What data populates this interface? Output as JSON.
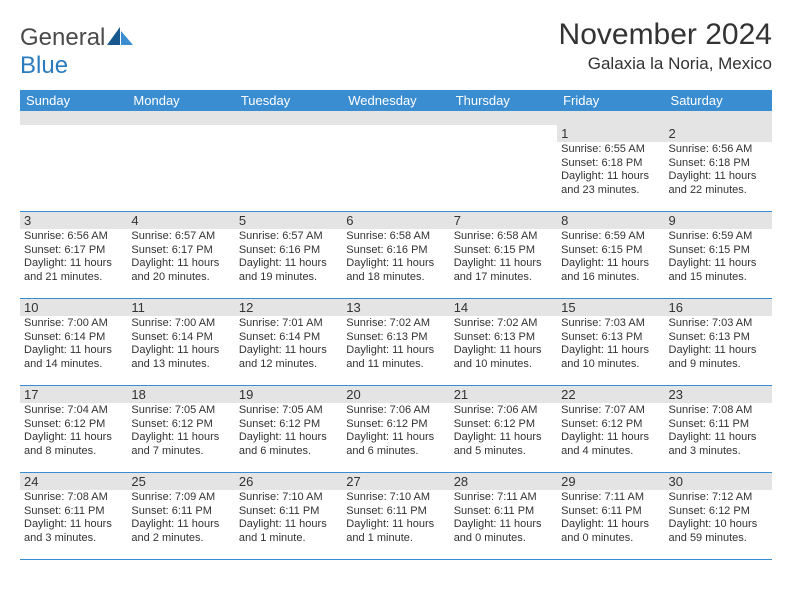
{
  "brand": {
    "part1": "General",
    "part2": "Blue"
  },
  "title": "November 2024",
  "location": "Galaxia la Noria, Mexico",
  "colors": {
    "header_bg": "#3a8dd0",
    "header_text": "#ffffff",
    "daynum_bg": "#e4e4e4",
    "border": "#3a8dd0",
    "text": "#333333",
    "logo_blue": "#2b7bbf"
  },
  "day_names": [
    "Sunday",
    "Monday",
    "Tuesday",
    "Wednesday",
    "Thursday",
    "Friday",
    "Saturday"
  ],
  "weeks": [
    [
      {
        "n": "",
        "sunrise": "",
        "sunset": "",
        "daylight": ""
      },
      {
        "n": "",
        "sunrise": "",
        "sunset": "",
        "daylight": ""
      },
      {
        "n": "",
        "sunrise": "",
        "sunset": "",
        "daylight": ""
      },
      {
        "n": "",
        "sunrise": "",
        "sunset": "",
        "daylight": ""
      },
      {
        "n": "",
        "sunrise": "",
        "sunset": "",
        "daylight": ""
      },
      {
        "n": "1",
        "sunrise": "Sunrise: 6:55 AM",
        "sunset": "Sunset: 6:18 PM",
        "daylight": "Daylight: 11 hours and 23 minutes."
      },
      {
        "n": "2",
        "sunrise": "Sunrise: 6:56 AM",
        "sunset": "Sunset: 6:18 PM",
        "daylight": "Daylight: 11 hours and 22 minutes."
      }
    ],
    [
      {
        "n": "3",
        "sunrise": "Sunrise: 6:56 AM",
        "sunset": "Sunset: 6:17 PM",
        "daylight": "Daylight: 11 hours and 21 minutes."
      },
      {
        "n": "4",
        "sunrise": "Sunrise: 6:57 AM",
        "sunset": "Sunset: 6:17 PM",
        "daylight": "Daylight: 11 hours and 20 minutes."
      },
      {
        "n": "5",
        "sunrise": "Sunrise: 6:57 AM",
        "sunset": "Sunset: 6:16 PM",
        "daylight": "Daylight: 11 hours and 19 minutes."
      },
      {
        "n": "6",
        "sunrise": "Sunrise: 6:58 AM",
        "sunset": "Sunset: 6:16 PM",
        "daylight": "Daylight: 11 hours and 18 minutes."
      },
      {
        "n": "7",
        "sunrise": "Sunrise: 6:58 AM",
        "sunset": "Sunset: 6:15 PM",
        "daylight": "Daylight: 11 hours and 17 minutes."
      },
      {
        "n": "8",
        "sunrise": "Sunrise: 6:59 AM",
        "sunset": "Sunset: 6:15 PM",
        "daylight": "Daylight: 11 hours and 16 minutes."
      },
      {
        "n": "9",
        "sunrise": "Sunrise: 6:59 AM",
        "sunset": "Sunset: 6:15 PM",
        "daylight": "Daylight: 11 hours and 15 minutes."
      }
    ],
    [
      {
        "n": "10",
        "sunrise": "Sunrise: 7:00 AM",
        "sunset": "Sunset: 6:14 PM",
        "daylight": "Daylight: 11 hours and 14 minutes."
      },
      {
        "n": "11",
        "sunrise": "Sunrise: 7:00 AM",
        "sunset": "Sunset: 6:14 PM",
        "daylight": "Daylight: 11 hours and 13 minutes."
      },
      {
        "n": "12",
        "sunrise": "Sunrise: 7:01 AM",
        "sunset": "Sunset: 6:14 PM",
        "daylight": "Daylight: 11 hours and 12 minutes."
      },
      {
        "n": "13",
        "sunrise": "Sunrise: 7:02 AM",
        "sunset": "Sunset: 6:13 PM",
        "daylight": "Daylight: 11 hours and 11 minutes."
      },
      {
        "n": "14",
        "sunrise": "Sunrise: 7:02 AM",
        "sunset": "Sunset: 6:13 PM",
        "daylight": "Daylight: 11 hours and 10 minutes."
      },
      {
        "n": "15",
        "sunrise": "Sunrise: 7:03 AM",
        "sunset": "Sunset: 6:13 PM",
        "daylight": "Daylight: 11 hours and 10 minutes."
      },
      {
        "n": "16",
        "sunrise": "Sunrise: 7:03 AM",
        "sunset": "Sunset: 6:13 PM",
        "daylight": "Daylight: 11 hours and 9 minutes."
      }
    ],
    [
      {
        "n": "17",
        "sunrise": "Sunrise: 7:04 AM",
        "sunset": "Sunset: 6:12 PM",
        "daylight": "Daylight: 11 hours and 8 minutes."
      },
      {
        "n": "18",
        "sunrise": "Sunrise: 7:05 AM",
        "sunset": "Sunset: 6:12 PM",
        "daylight": "Daylight: 11 hours and 7 minutes."
      },
      {
        "n": "19",
        "sunrise": "Sunrise: 7:05 AM",
        "sunset": "Sunset: 6:12 PM",
        "daylight": "Daylight: 11 hours and 6 minutes."
      },
      {
        "n": "20",
        "sunrise": "Sunrise: 7:06 AM",
        "sunset": "Sunset: 6:12 PM",
        "daylight": "Daylight: 11 hours and 6 minutes."
      },
      {
        "n": "21",
        "sunrise": "Sunrise: 7:06 AM",
        "sunset": "Sunset: 6:12 PM",
        "daylight": "Daylight: 11 hours and 5 minutes."
      },
      {
        "n": "22",
        "sunrise": "Sunrise: 7:07 AM",
        "sunset": "Sunset: 6:12 PM",
        "daylight": "Daylight: 11 hours and 4 minutes."
      },
      {
        "n": "23",
        "sunrise": "Sunrise: 7:08 AM",
        "sunset": "Sunset: 6:11 PM",
        "daylight": "Daylight: 11 hours and 3 minutes."
      }
    ],
    [
      {
        "n": "24",
        "sunrise": "Sunrise: 7:08 AM",
        "sunset": "Sunset: 6:11 PM",
        "daylight": "Daylight: 11 hours and 3 minutes."
      },
      {
        "n": "25",
        "sunrise": "Sunrise: 7:09 AM",
        "sunset": "Sunset: 6:11 PM",
        "daylight": "Daylight: 11 hours and 2 minutes."
      },
      {
        "n": "26",
        "sunrise": "Sunrise: 7:10 AM",
        "sunset": "Sunset: 6:11 PM",
        "daylight": "Daylight: 11 hours and 1 minute."
      },
      {
        "n": "27",
        "sunrise": "Sunrise: 7:10 AM",
        "sunset": "Sunset: 6:11 PM",
        "daylight": "Daylight: 11 hours and 1 minute."
      },
      {
        "n": "28",
        "sunrise": "Sunrise: 7:11 AM",
        "sunset": "Sunset: 6:11 PM",
        "daylight": "Daylight: 11 hours and 0 minutes."
      },
      {
        "n": "29",
        "sunrise": "Sunrise: 7:11 AM",
        "sunset": "Sunset: 6:11 PM",
        "daylight": "Daylight: 11 hours and 0 minutes."
      },
      {
        "n": "30",
        "sunrise": "Sunrise: 7:12 AM",
        "sunset": "Sunset: 6:12 PM",
        "daylight": "Daylight: 10 hours and 59 minutes."
      }
    ]
  ]
}
